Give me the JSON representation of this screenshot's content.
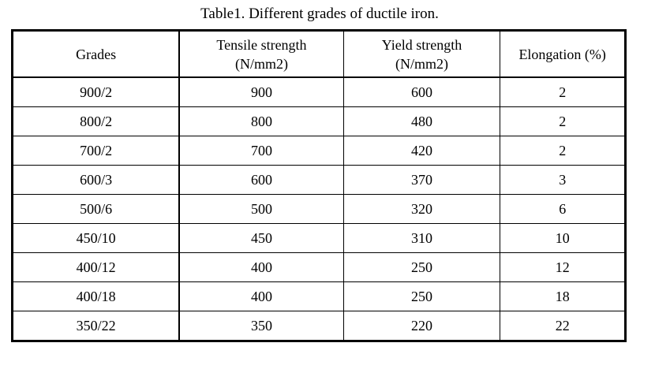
{
  "caption": "Table1. Different grades of ductile iron.",
  "table": {
    "columns": [
      {
        "lines": [
          "Grades"
        ]
      },
      {
        "lines": [
          "Tensile strength",
          "(N/mm2)"
        ]
      },
      {
        "lines": [
          "Yield strength",
          "(N/mm2)"
        ]
      },
      {
        "lines": [
          "Elongation (%)"
        ]
      }
    ],
    "rows": [
      [
        "900/2",
        "900",
        "600",
        "2"
      ],
      [
        "800/2",
        "800",
        "480",
        "2"
      ],
      [
        "700/2",
        "700",
        "420",
        "2"
      ],
      [
        "600/3",
        "600",
        "370",
        "3"
      ],
      [
        "500/6",
        "500",
        "320",
        "6"
      ],
      [
        "450/10",
        "450",
        "310",
        "10"
      ],
      [
        "400/12",
        "400",
        "250",
        "12"
      ],
      [
        "400/18",
        "400",
        "250",
        "18"
      ],
      [
        "350/22",
        "350",
        "220",
        "22"
      ]
    ]
  },
  "colors": {
    "text": "#000000",
    "border": "#000000",
    "background": "#ffffff"
  }
}
